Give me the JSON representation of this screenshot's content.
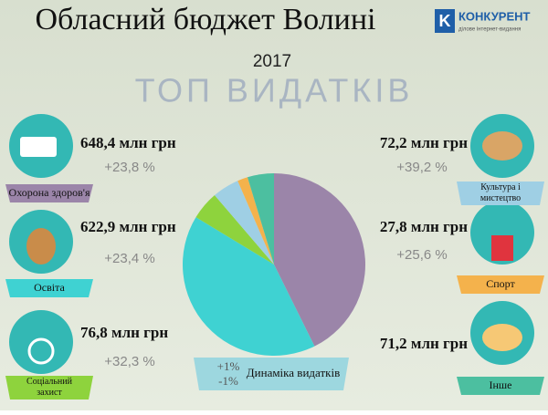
{
  "chart_data": {
    "type": "pie",
    "title": "Обласний бюджет Волині",
    "subtitle": "2017",
    "heading": "ТОП ВИДАТКІВ",
    "logo": "КОНКУРЕНТ",
    "logo_tagline": "ділове інтернет-видання",
    "categories": [
      "Охорона здоров'я",
      "Освіта",
      "Соціальний захист",
      "Культура і мистецтво",
      "Спорт",
      "Інше"
    ],
    "values": [
      648.4,
      622.9,
      76.8,
      72.2,
      27.8,
      71.2
    ],
    "value_labels": [
      "648,4 млн грн",
      "622,9 млн грн",
      "76,8 млн грн",
      "72,2 млн грн",
      "27,8 млн грн",
      "71,2 млн грн"
    ],
    "changes": [
      23.8,
      23.4,
      32.3,
      39.2,
      25.6,
      null
    ],
    "change_labels": [
      "+23,8 %",
      "+23,4 %",
      "+32,3 %",
      "+39,2 %",
      "+25,6 %",
      null
    ],
    "colors": [
      "#9b85a9",
      "#3fd2d2",
      "#8ed33d",
      "#9fcfe4",
      "#f4b24c",
      "#4cbfa0"
    ],
    "legend": {
      "plus": "+1%",
      "minus": "-1%",
      "label": "Динаміка видатків"
    }
  }
}
